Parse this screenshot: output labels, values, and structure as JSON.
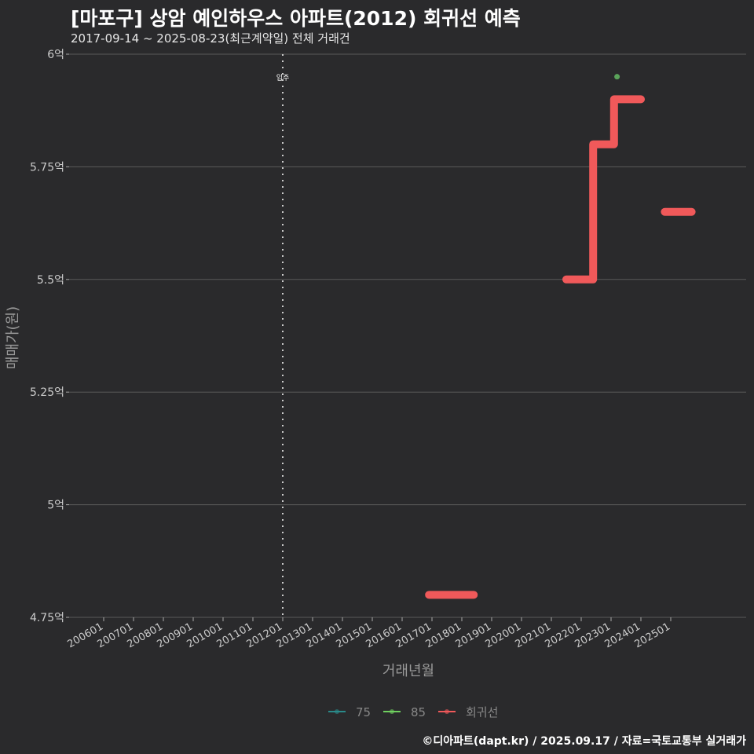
{
  "title": "[마포구] 상암 예인하우스 아파트(2012) 회귀선 예측",
  "subtitle": "2017-09-14 ~ 2025-08-23(최근계약일) 전체 거래건",
  "footer": "©디아파트(dapt.kr) / 2025.09.17 / 자료=국토교통부 실거래가",
  "colors": {
    "regression": "#f0595a",
    "s75": "#2a8a8a",
    "s85": "#6fcf5f",
    "point85": "#5aa35a",
    "grid": "#5a5a5a"
  },
  "chart_data": {
    "type": "line",
    "xlabel": "거래년월",
    "ylabel": "매매가(원)",
    "ylim": [
      4.75,
      6.0
    ],
    "yticks": [
      {
        "v": 6.0,
        "label": "6억"
      },
      {
        "v": 5.75,
        "label": "5.75억"
      },
      {
        "v": 5.5,
        "label": "5.5억"
      },
      {
        "v": 5.25,
        "label": "5.25억"
      },
      {
        "v": 5.0,
        "label": "5억"
      },
      {
        "v": 4.75,
        "label": "4.75억"
      }
    ],
    "xticks": [
      "200601",
      "200701",
      "200801",
      "200901",
      "201001",
      "201101",
      "201201",
      "201301",
      "201401",
      "201501",
      "201601",
      "201701",
      "201801",
      "201901",
      "202001",
      "202101",
      "202201",
      "202301",
      "202401",
      "202501"
    ],
    "annotation": {
      "x": 2012.0,
      "label": "입주"
    },
    "series": [
      {
        "name": "75",
        "points": []
      },
      {
        "name": "85",
        "points": [
          [
            2023.2,
            5.95
          ]
        ]
      },
      {
        "name": "회귀선",
        "segments": [
          [
            [
              2016.9,
              4.8
            ],
            [
              2018.4,
              4.8
            ]
          ],
          [
            [
              2021.5,
              5.5
            ],
            [
              2022.4,
              5.5
            ],
            [
              2022.4,
              5.8
            ],
            [
              2023.1,
              5.8
            ],
            [
              2023.1,
              5.9
            ],
            [
              2024.0,
              5.9
            ]
          ],
          [
            [
              2024.8,
              5.65
            ],
            [
              2025.7,
              5.65
            ]
          ]
        ]
      }
    ],
    "legend": {
      "position": "bottom",
      "items": [
        "75",
        "85",
        "회귀선"
      ]
    }
  }
}
